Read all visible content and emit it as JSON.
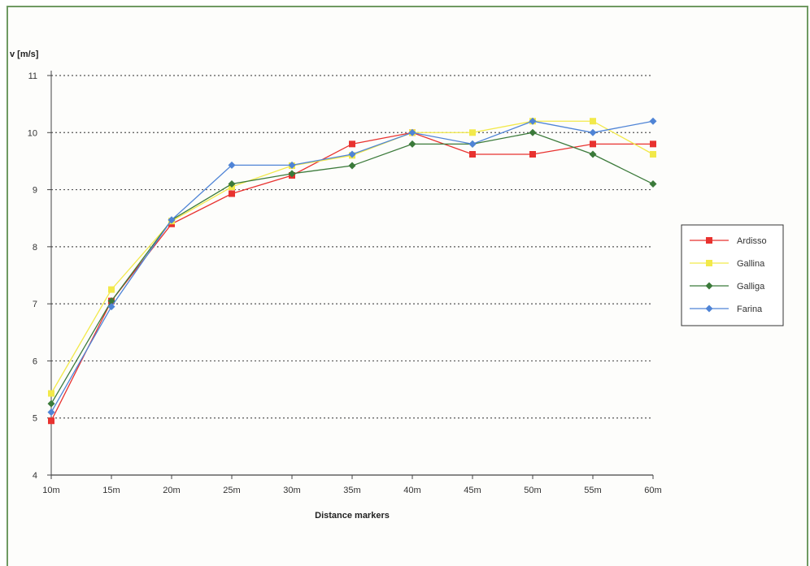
{
  "chart_data": {
    "type": "line",
    "title": "",
    "ylabel": "v [m/s]",
    "xlabel": "Distance markers",
    "categories": [
      "10m",
      "15m",
      "20m",
      "25m",
      "30m",
      "35m",
      "40m",
      "45m",
      "50m",
      "55m",
      "60m"
    ],
    "ylim": [
      4,
      11
    ],
    "yticks": [
      "4",
      "5",
      "6",
      "7",
      "8",
      "9",
      "10",
      "11"
    ],
    "grid": "horizontal dotted",
    "legend_position": "right",
    "series": [
      {
        "name": "Ardisso",
        "color": "#e8322f",
        "marker": "square",
        "values": [
          4.95,
          7.05,
          8.4,
          8.93,
          9.25,
          9.8,
          10.0,
          9.62,
          9.62,
          9.8,
          9.8
        ]
      },
      {
        "name": "Gallina",
        "color": "#f2e94a",
        "marker": "square",
        "values": [
          5.43,
          7.25,
          8.45,
          9.05,
          9.42,
          9.6,
          10.0,
          10.0,
          10.2,
          10.2,
          9.62
        ]
      },
      {
        "name": "Galliga",
        "color": "#3b7a3a",
        "marker": "diamond",
        "values": [
          5.25,
          7.05,
          8.47,
          9.1,
          9.28,
          9.42,
          9.8,
          9.8,
          10.0,
          9.62,
          9.1
        ]
      },
      {
        "name": "Farina",
        "color": "#4f84d6",
        "marker": "diamond",
        "values": [
          5.1,
          6.95,
          8.47,
          9.43,
          9.43,
          9.62,
          10.0,
          9.8,
          10.2,
          10.0,
          10.2
        ]
      }
    ]
  }
}
